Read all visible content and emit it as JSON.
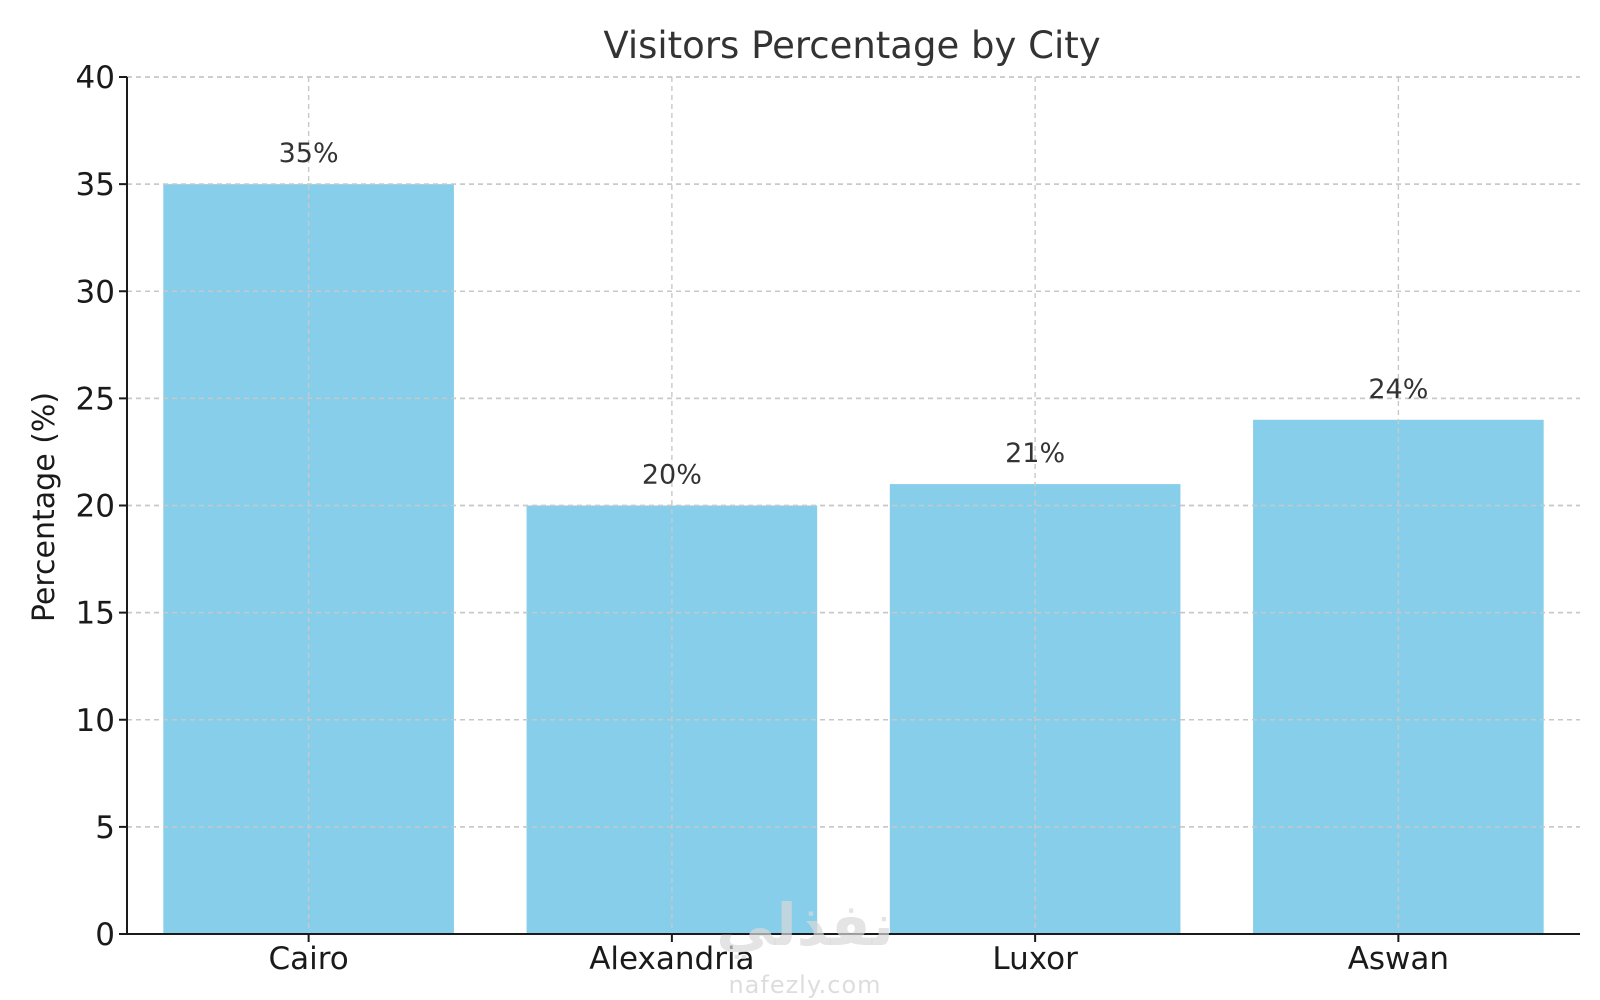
{
  "chart_data": {
    "type": "bar",
    "title": "Visitors Percentage by City",
    "xlabel": "",
    "ylabel": "Percentage (%)",
    "categories": [
      "Cairo",
      "Alexandria",
      "Luxor",
      "Aswan"
    ],
    "values": [
      35,
      20,
      21,
      24
    ],
    "data_labels": [
      "35%",
      "20%",
      "21%",
      "24%"
    ],
    "ylim": [
      0,
      40
    ],
    "yticks": [
      0,
      5,
      10,
      15,
      20,
      25,
      30,
      35,
      40
    ],
    "grid": true,
    "legend": null,
    "bar_color": "#87CEEB"
  },
  "watermark": {
    "logo_text": "نفذلي",
    "url": "nafezly.com"
  }
}
